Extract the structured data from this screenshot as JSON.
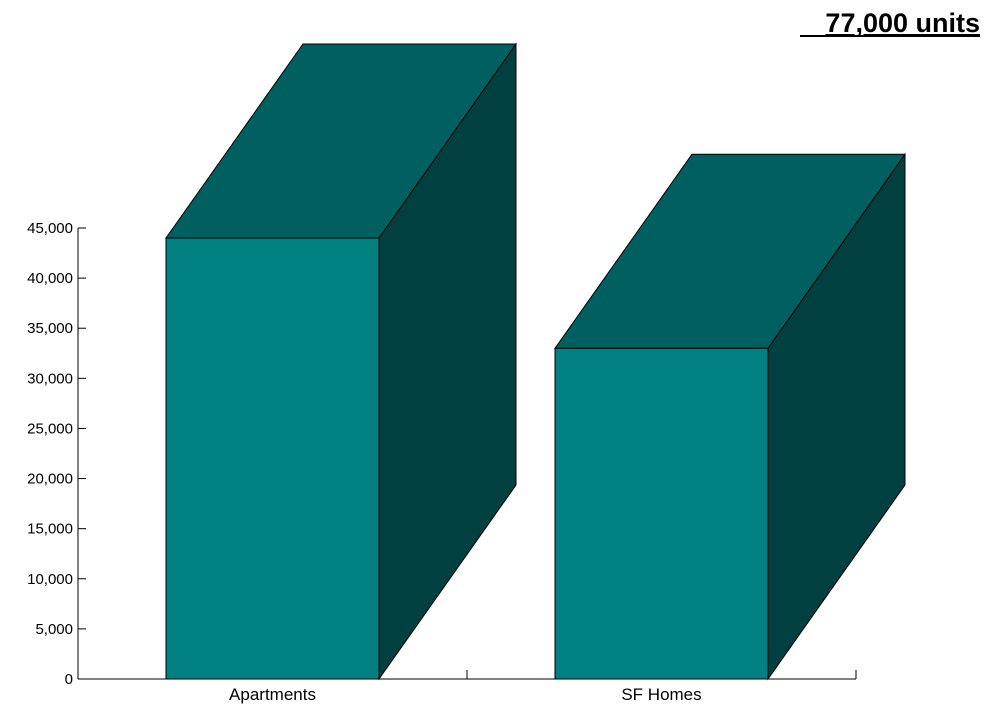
{
  "chart_data": {
    "type": "bar",
    "title": "77,000 units",
    "categories": [
      "Apartments",
      "SF Homes"
    ],
    "values": [
      44000,
      33000
    ],
    "xlabel": "",
    "ylabel": "",
    "ylim": [
      0,
      45000
    ],
    "yticks": [
      0,
      5000,
      10000,
      15000,
      20000,
      25000,
      30000,
      35000,
      40000,
      45000
    ],
    "ytick_labels": [
      "0",
      "5,000",
      "10,000",
      "15,000",
      "20,000",
      "25,000",
      "30,000",
      "35,000",
      "40,000",
      "45,000"
    ],
    "grid": false,
    "legend": "none",
    "style": "3d"
  },
  "colors": {
    "front": "#008080",
    "top": "#005f5f",
    "side": "#004040",
    "outline": "#000000"
  }
}
